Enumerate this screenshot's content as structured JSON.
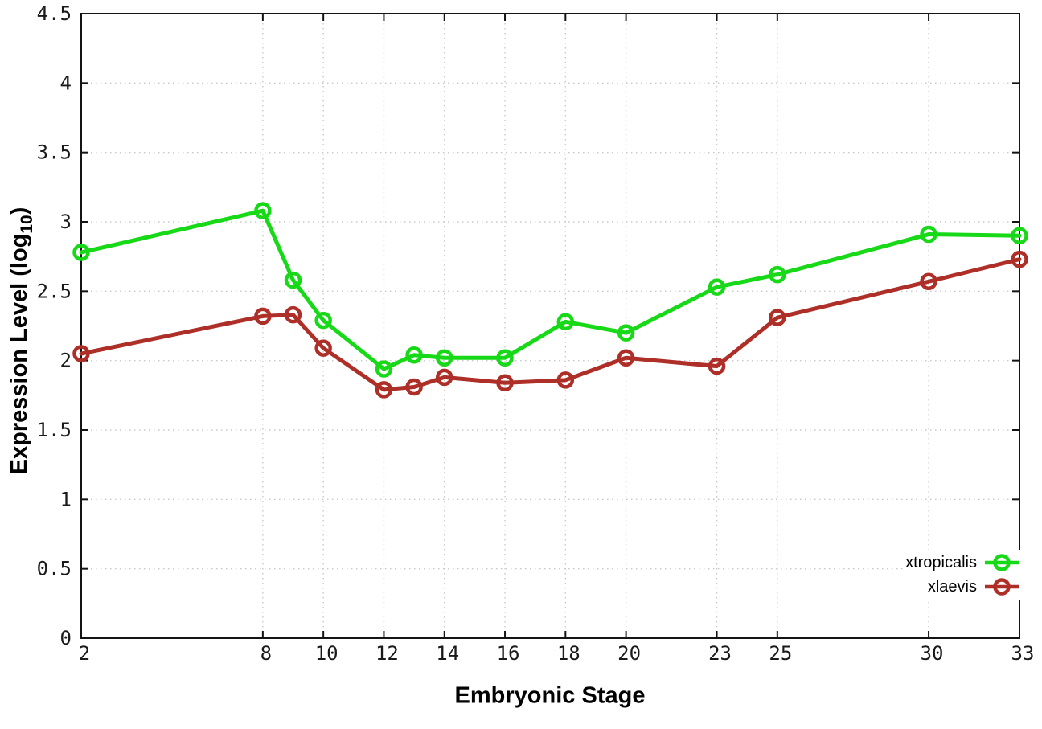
{
  "figure": {
    "xlabel": "Embryonic Stage",
    "ylabel_pre": "Expression Level (log",
    "ylabel_sub": "10",
    "ylabel_post": ")"
  },
  "legend": {
    "entries": [
      {
        "label": "xtropicalis",
        "color": "#17D917"
      },
      {
        "label": "xlaevis",
        "color": "#AE2F28"
      }
    ]
  },
  "chart_data": {
    "type": "line",
    "title": "",
    "xlabel": "Embryonic Stage",
    "ylabel": "Expression Level (log10)",
    "x": [
      2,
      8,
      9,
      10,
      12,
      13,
      14,
      16,
      18,
      20,
      23,
      25,
      30,
      33
    ],
    "series": [
      {
        "name": "xtropicalis",
        "color": "#17D917",
        "values": [
          2.78,
          3.08,
          2.58,
          2.29,
          1.94,
          2.04,
          2.02,
          2.02,
          2.28,
          2.2,
          2.53,
          2.62,
          2.91,
          2.9
        ]
      },
      {
        "name": "xlaevis",
        "color": "#AE2F28",
        "values": [
          2.05,
          2.32,
          2.33,
          2.09,
          1.79,
          1.81,
          1.88,
          1.84,
          1.86,
          2.02,
          1.96,
          2.31,
          2.57,
          2.73
        ]
      }
    ],
    "xlim": [
      2,
      33
    ],
    "ylim": [
      0,
      4.5
    ],
    "x_ticks": [
      2,
      8,
      10,
      12,
      14,
      16,
      18,
      20,
      23,
      25,
      30,
      33
    ],
    "x_tick_labels": [
      "2",
      "8",
      "10",
      "12",
      "14",
      "16",
      "18",
      "20",
      "23",
      "25",
      "30",
      "33"
    ],
    "y_ticks": [
      0,
      0.5,
      1,
      1.5,
      2,
      2.5,
      3,
      3.5,
      4,
      4.5
    ],
    "y_tick_labels": [
      "0",
      "0.5",
      "1",
      "1.5",
      "2",
      "2.5",
      "3",
      "3.5",
      "4",
      "4.5"
    ],
    "grid": true,
    "grid_style": "dotted",
    "legend_position": "bottom-right",
    "marker": "open-circle",
    "styles": {
      "grid_color": "#c9c9c9",
      "axis_color": "#141414",
      "tick_label_color": "#1a1a1a",
      "background": "#ffffff"
    }
  }
}
